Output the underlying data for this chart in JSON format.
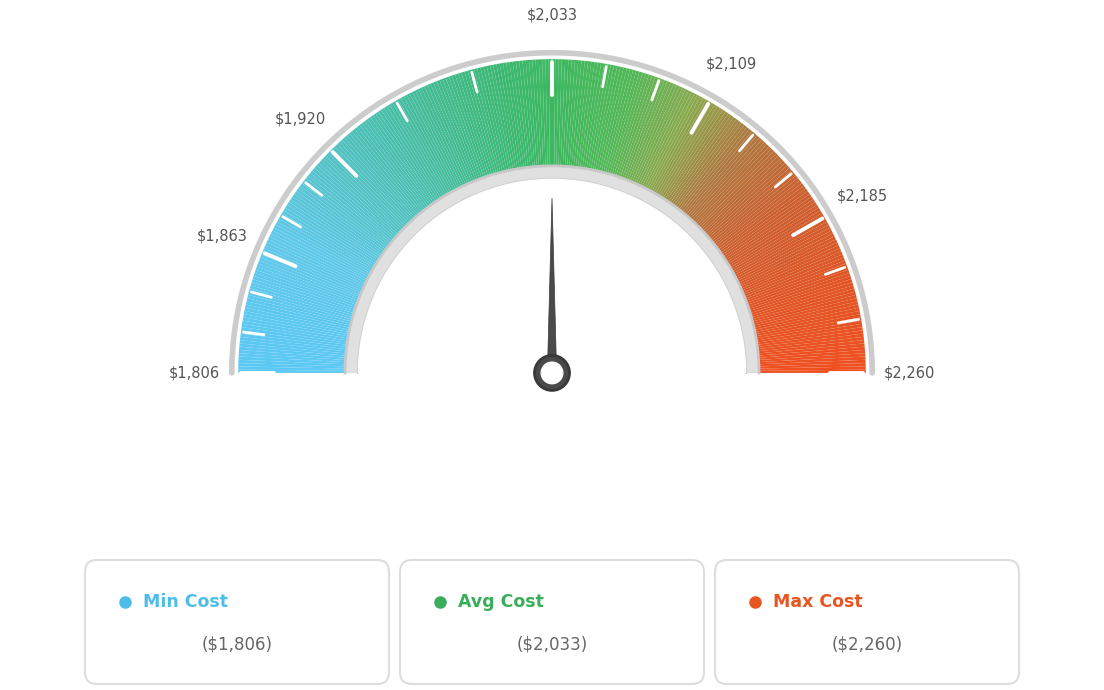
{
  "min_val": 1806,
  "max_val": 2260,
  "avg_val": 2033,
  "tick_labels": [
    "$1,806",
    "$1,863",
    "$1,920",
    "$2,033",
    "$2,109",
    "$2,185",
    "$2,260"
  ],
  "tick_values": [
    1806,
    1863,
    1920,
    2033,
    2109,
    2185,
    2260
  ],
  "legend_items": [
    {
      "label": "Min Cost",
      "sublabel": "($1,806)",
      "color": "#4bbde8",
      "dot_color": "#4bbde8"
    },
    {
      "label": "Avg Cost",
      "sublabel": "($2,033)",
      "color": "#3aad5a",
      "dot_color": "#3aad5a"
    },
    {
      "label": "Max Cost",
      "sublabel": "($2,260)",
      "color": "#e85520",
      "dot_color": "#e85520"
    }
  ],
  "bg_color": "#ffffff",
  "color_stops": [
    [
      0.0,
      "#5bc8f5"
    ],
    [
      0.15,
      "#60c8e8"
    ],
    [
      0.3,
      "#4bbfb0"
    ],
    [
      0.45,
      "#3db870"
    ],
    [
      0.5,
      "#3db860"
    ],
    [
      0.58,
      "#52b858"
    ],
    [
      0.65,
      "#8aaa50"
    ],
    [
      0.72,
      "#b07840"
    ],
    [
      0.8,
      "#cc6030"
    ],
    [
      0.9,
      "#e05525"
    ],
    [
      1.0,
      "#f05020"
    ]
  ]
}
